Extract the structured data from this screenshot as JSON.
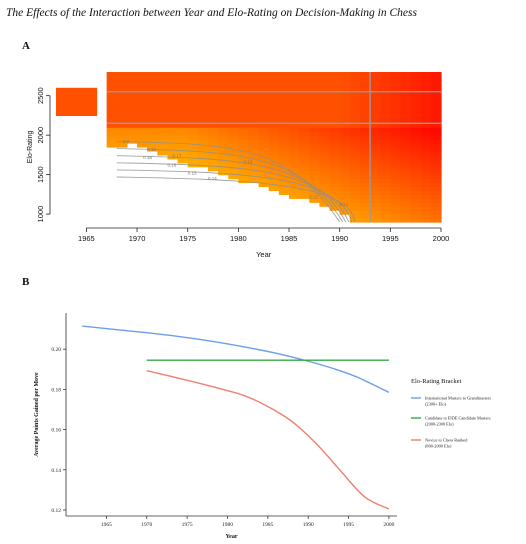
{
  "figure_title": "The Effects of the Interaction between Year and Elo-Rating on Decision-Making in Chess",
  "panel_a_label": "A",
  "panel_b_label": "B",
  "chart_data": [
    {
      "type": "heatmap",
      "panel": "A",
      "xlabel": "Year",
      "ylabel": "Elo-Rating",
      "xlim": [
        1962,
        2000
      ],
      "ylim": [
        900,
        2800
      ],
      "x_ticks": [
        "1965",
        "1970",
        "1975",
        "1980",
        "1985",
        "1990",
        "1995",
        "2000"
      ],
      "y_ticks": [
        "1000",
        "1500",
        "2000",
        "2500"
      ],
      "color_scale": [
        "#fff700",
        "#ffb000",
        "#ff7000",
        "#ff0000"
      ],
      "color_scale_note": "yellow = higher points gained per move, red = lower",
      "contour_labels": [
        "0.2",
        "0.19",
        "0.18",
        "0.17",
        "0.16",
        "0.15",
        "0.14",
        "0.13",
        "0.12",
        "0.21"
      ],
      "gridlines": {
        "x": [
          1993
        ],
        "y": [
          2150,
          2550
        ]
      }
    },
    {
      "type": "line",
      "panel": "B",
      "xlabel": "Year",
      "ylabel": "Average Points Gained per Move",
      "xlim": [
        1960,
        2001
      ],
      "ylim": [
        0.117,
        0.218
      ],
      "x_ticks": [
        "1965",
        "1970",
        "1975",
        "1980",
        "1985",
        "1990",
        "1995",
        "2000"
      ],
      "y_ticks": [
        "0.12",
        "0.14",
        "0.16",
        "0.18",
        "0.20"
      ],
      "legend_title": "Elo-Rating Bracket",
      "legend_placement": "right",
      "series": [
        {
          "name": "International Masters to Grandmasters (2300+ Elo)",
          "name_lines": [
            "International Masters to Grandmasters",
            "(2300+ Elo)"
          ],
          "color": "#6d9eeb",
          "x": [
            1962,
            1966,
            1970,
            1974,
            1978,
            1982,
            1986,
            1990,
            1993,
            1996,
            2000
          ],
          "values": [
            0.2115,
            0.2098,
            0.2082,
            0.2063,
            0.204,
            0.2012,
            0.198,
            0.194,
            0.1905,
            0.1862,
            0.1785
          ]
        },
        {
          "name": "Candidate to FIDE Candidate Masters (2000-2300 Elo)",
          "name_lines": [
            "Candidate to FIDE Candidate Masters",
            "(2000-2300 Elo)"
          ],
          "color": "#33aa44",
          "x": [
            1970,
            2000
          ],
          "values": [
            0.1945,
            0.1945
          ]
        },
        {
          "name": "Novice to Chess Ranked (800-2000 Elo)",
          "name_lines": [
            "Novice to Chess Ranked",
            "(800-2000 Elo)"
          ],
          "color": "#f08070",
          "x": [
            1970,
            1974,
            1978,
            1982,
            1985,
            1988,
            1991,
            1994,
            1997,
            2000
          ],
          "values": [
            0.1893,
            0.1855,
            0.1815,
            0.177,
            0.1715,
            0.164,
            0.153,
            0.1395,
            0.1265,
            0.1205
          ]
        }
      ]
    }
  ]
}
